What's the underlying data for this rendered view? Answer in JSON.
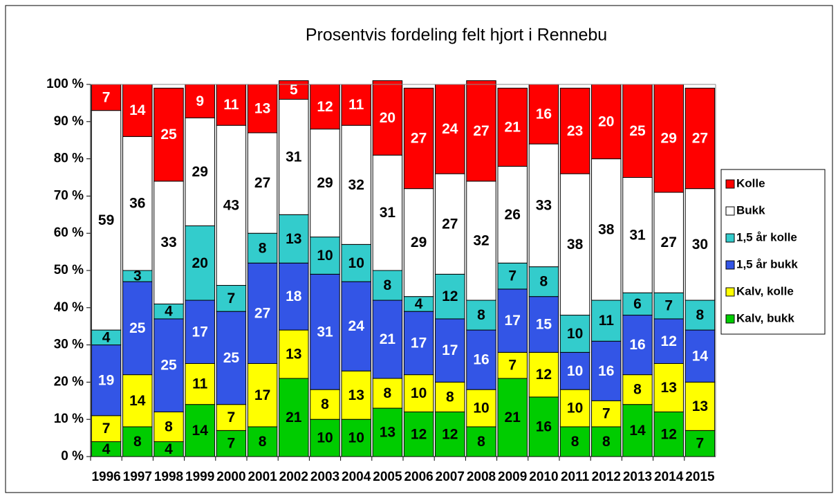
{
  "chart_data": {
    "type": "bar",
    "stacked": true,
    "title": "Prosentvis fordeling felt hjort i Rennebu",
    "categories": [
      "1996",
      "1997",
      "1998",
      "1999",
      "2000",
      "2001",
      "2002",
      "2003",
      "2004",
      "2005",
      "2006",
      "2007",
      "2008",
      "2009",
      "2010",
      "2011",
      "2012",
      "2013",
      "2014",
      "2015"
    ],
    "series": [
      {
        "name": "Kalv, bukk",
        "color": "#00cc00",
        "values": [
          4,
          8,
          4,
          14,
          7,
          8,
          21,
          10,
          10,
          13,
          12,
          12,
          8,
          21,
          16,
          8,
          8,
          14,
          12,
          7
        ]
      },
      {
        "name": "Kalv, kolle",
        "color": "#ffff00",
        "values": [
          7,
          14,
          8,
          11,
          7,
          17,
          13,
          8,
          13,
          8,
          10,
          8,
          10,
          7,
          12,
          10,
          7,
          8,
          13,
          13
        ]
      },
      {
        "name": "1,5 år bukk",
        "color": "#3355e6",
        "values": [
          19,
          25,
          25,
          17,
          25,
          27,
          18,
          31,
          24,
          21,
          17,
          17,
          16,
          17,
          15,
          10,
          16,
          16,
          12,
          14
        ]
      },
      {
        "name": "1,5 år kolle",
        "color": "#33cccc",
        "values": [
          4,
          3,
          4,
          20,
          7,
          8,
          13,
          10,
          10,
          8,
          4,
          12,
          8,
          7,
          8,
          10,
          11,
          6,
          7,
          8
        ]
      },
      {
        "name": "Bukk",
        "color": "#ffffff",
        "values": [
          59,
          36,
          33,
          29,
          43,
          27,
          31,
          29,
          32,
          31,
          29,
          27,
          32,
          26,
          33,
          38,
          38,
          31,
          27,
          30
        ]
      },
      {
        "name": "Kolle",
        "color": "#ff0000",
        "values": [
          7,
          14,
          25,
          9,
          11,
          13,
          5,
          12,
          11,
          20,
          27,
          24,
          27,
          21,
          16,
          23,
          20,
          25,
          29,
          27
        ]
      }
    ],
    "ylim": [
      0,
      100
    ],
    "yticks": [
      {
        "value": 0,
        "label": "0 %"
      },
      {
        "value": 10,
        "label": "10 %"
      },
      {
        "value": 20,
        "label": "20 %"
      },
      {
        "value": 30,
        "label": "30 %"
      },
      {
        "value": 40,
        "label": "40 %"
      },
      {
        "value": 50,
        "label": "50 %"
      },
      {
        "value": 60,
        "label": "60 %"
      },
      {
        "value": 70,
        "label": "70 %"
      },
      {
        "value": 80,
        "label": "80 %"
      },
      {
        "value": 90,
        "label": "90 %"
      },
      {
        "value": 100,
        "label": "100 %"
      }
    ],
    "grid": false,
    "legend": "right"
  }
}
